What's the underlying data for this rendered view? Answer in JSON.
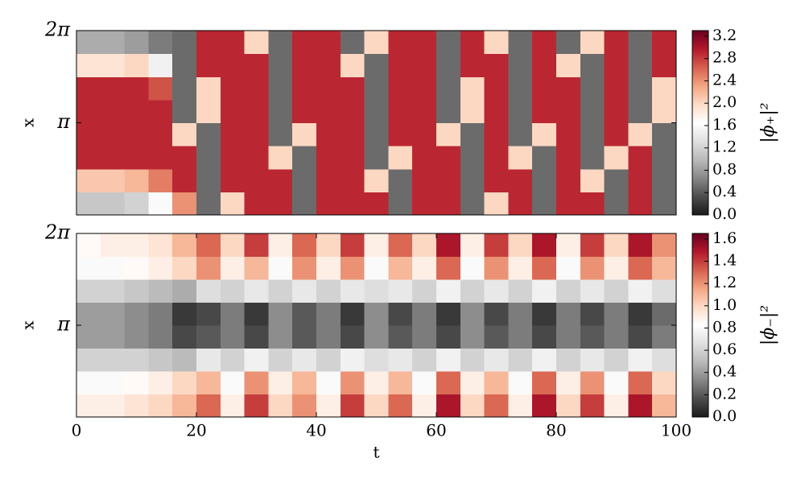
{
  "chart_data": [
    {
      "type": "heatmap",
      "ylabel": "x",
      "zlabel": "|ϕ₊|²",
      "xlim": [
        0,
        100
      ],
      "ylim": [
        0,
        6.2832
      ],
      "yticks": [
        {
          "value": 3.1416,
          "label": "π"
        },
        {
          "value": 6.2832,
          "label": "2π"
        }
      ],
      "xbins": [
        0,
        4,
        8,
        12,
        16,
        20,
        24,
        28,
        32,
        36,
        40,
        44,
        48,
        52,
        56,
        60,
        64,
        68,
        72,
        76,
        80,
        84,
        88,
        92,
        96,
        100
      ],
      "ybins": [
        0,
        0.7854,
        1.5708,
        2.3562,
        3.1416,
        3.927,
        4.7124,
        5.4978,
        6.2832
      ],
      "zlim": [
        0,
        3.3
      ],
      "zticks": [
        {
          "value": 0,
          "label": "0.0"
        },
        0.4,
        0.8,
        1.2,
        1.6,
        {
          "value": 2,
          "label": "2.0"
        },
        2.4,
        2.8,
        3.2
      ],
      "colorscale": [
        "#1a1a1a",
        "#4d4d4d",
        "#878787",
        "#bababa",
        "#e0e0e0",
        "#ffffff",
        "#fddbc7",
        "#f4a582",
        "#d6604d",
        "#b2182b",
        "#67001f"
      ],
      "z": [
        [
          1.1,
          1.1,
          1.2,
          1.6,
          2.4,
          0.5,
          2.0,
          2.9,
          2.9,
          0.5,
          2.9,
          2.9,
          2.9,
          0.5,
          2.9,
          2.9,
          0.5,
          2.0,
          2.9,
          0.5,
          2.9,
          2.9,
          0.5,
          2.9,
          0.5
        ],
        [
          2.1,
          2.1,
          2.2,
          2.5,
          2.9,
          0.5,
          2.9,
          2.9,
          2.9,
          0.5,
          2.9,
          2.9,
          2.0,
          0.5,
          2.9,
          2.9,
          0.5,
          2.9,
          2.9,
          0.5,
          2.9,
          2.0,
          0.5,
          2.9,
          0.5
        ],
        [
          2.9,
          2.9,
          2.9,
          2.9,
          2.9,
          0.5,
          2.9,
          2.9,
          2.0,
          0.5,
          2.9,
          2.9,
          0.5,
          2.0,
          2.9,
          2.9,
          0.5,
          2.9,
          2.0,
          0.5,
          2.9,
          0.5,
          2.0,
          2.9,
          0.5
        ],
        [
          2.9,
          2.9,
          2.9,
          2.9,
          2.0,
          0.5,
          2.9,
          2.9,
          0.5,
          2.0,
          2.9,
          2.9,
          0.5,
          2.9,
          2.9,
          2.0,
          0.5,
          2.9,
          0.5,
          2.0,
          2.9,
          0.5,
          2.9,
          2.0,
          0.5
        ],
        [
          2.9,
          2.9,
          2.9,
          2.9,
          0.5,
          2.0,
          2.9,
          2.9,
          0.5,
          2.9,
          2.9,
          2.9,
          0.5,
          2.9,
          2.9,
          0.5,
          2.0,
          2.9,
          0.5,
          2.9,
          2.9,
          0.5,
          2.9,
          0.5,
          2.0
        ],
        [
          2.9,
          2.9,
          2.9,
          2.7,
          0.5,
          2.0,
          2.9,
          2.9,
          0.5,
          2.9,
          2.9,
          2.9,
          0.5,
          2.9,
          2.9,
          0.5,
          2.0,
          2.9,
          0.5,
          2.9,
          2.9,
          0.5,
          2.9,
          0.5,
          2.0
        ],
        [
          1.9,
          1.9,
          2.0,
          1.5,
          0.5,
          2.9,
          2.9,
          2.9,
          0.5,
          2.9,
          2.9,
          2.0,
          0.5,
          2.9,
          2.9,
          0.5,
          2.9,
          2.9,
          0.5,
          2.9,
          2.0,
          0.5,
          2.9,
          0.5,
          2.9
        ],
        [
          0.9,
          0.9,
          0.8,
          0.6,
          0.5,
          2.9,
          2.9,
          2.0,
          0.5,
          2.9,
          2.9,
          0.5,
          2.0,
          2.9,
          2.9,
          0.5,
          2.9,
          2.0,
          0.5,
          2.9,
          0.5,
          2.0,
          2.9,
          0.5,
          2.9
        ]
      ]
    },
    {
      "type": "heatmap",
      "ylabel": "x",
      "xlabel": "t",
      "zlabel": "|ϕ₋|²",
      "xlim": [
        0,
        100
      ],
      "ylim": [
        0,
        6.2832
      ],
      "xticks": [
        0,
        20,
        40,
        60,
        80,
        100
      ],
      "yticks": [
        {
          "value": 3.1416,
          "label": "π"
        },
        {
          "value": 6.2832,
          "label": "2π"
        }
      ],
      "xbins": [
        0,
        4,
        8,
        12,
        16,
        20,
        24,
        28,
        32,
        36,
        40,
        44,
        48,
        52,
        56,
        60,
        64,
        68,
        72,
        76,
        80,
        84,
        88,
        92,
        96,
        100
      ],
      "ybins": [
        0,
        0.7854,
        1.5708,
        2.3562,
        3.1416,
        3.927,
        4.7124,
        5.4978,
        6.2832
      ],
      "zlim": [
        0,
        1.65
      ],
      "zticks": [
        {
          "value": 0,
          "label": "0.0"
        },
        0.2,
        0.4,
        0.6,
        0.8,
        {
          "value": 1,
          "label": "1.0"
        },
        1.2,
        1.4,
        1.6
      ],
      "colorscale": [
        "#1a1a1a",
        "#4d4d4d",
        "#878787",
        "#bababa",
        "#e0e0e0",
        "#ffffff",
        "#fddbc7",
        "#f4a582",
        "#d6604d",
        "#b2182b",
        "#67001f"
      ],
      "z": [
        [
          0.9,
          0.9,
          0.95,
          1.0,
          1.1,
          1.3,
          0.9,
          1.4,
          1.0,
          1.2,
          0.9,
          1.4,
          1.0,
          1.3,
          0.9,
          1.5,
          1.0,
          1.3,
          0.9,
          1.5,
          1.0,
          1.4,
          0.9,
          1.5,
          1.1
        ],
        [
          0.8,
          0.8,
          0.85,
          0.9,
          1.0,
          1.1,
          0.8,
          1.2,
          0.9,
          1.1,
          0.8,
          1.2,
          0.9,
          1.1,
          0.8,
          1.3,
          0.9,
          1.1,
          0.8,
          1.3,
          0.9,
          1.2,
          0.8,
          1.3,
          1.0
        ],
        [
          0.6,
          0.6,
          0.6,
          0.55,
          0.5,
          0.7,
          0.6,
          0.75,
          0.6,
          0.7,
          0.6,
          0.75,
          0.65,
          0.7,
          0.6,
          0.75,
          0.6,
          0.7,
          0.6,
          0.75,
          0.6,
          0.7,
          0.6,
          0.75,
          0.65
        ],
        [
          0.4,
          0.4,
          0.35,
          0.3,
          0.15,
          0.2,
          0.3,
          0.15,
          0.35,
          0.2,
          0.3,
          0.15,
          0.35,
          0.2,
          0.3,
          0.15,
          0.35,
          0.2,
          0.3,
          0.15,
          0.3,
          0.2,
          0.3,
          0.15,
          0.3
        ],
        [
          0.4,
          0.4,
          0.35,
          0.3,
          0.1,
          0.15,
          0.3,
          0.1,
          0.35,
          0.2,
          0.3,
          0.1,
          0.35,
          0.15,
          0.3,
          0.1,
          0.35,
          0.15,
          0.3,
          0.1,
          0.3,
          0.15,
          0.3,
          0.1,
          0.25
        ],
        [
          0.6,
          0.6,
          0.55,
          0.5,
          0.45,
          0.65,
          0.6,
          0.7,
          0.6,
          0.7,
          0.6,
          0.7,
          0.65,
          0.7,
          0.6,
          0.75,
          0.6,
          0.7,
          0.6,
          0.75,
          0.6,
          0.7,
          0.6,
          0.75,
          0.65
        ],
        [
          0.8,
          0.8,
          0.85,
          0.9,
          1.0,
          1.2,
          0.9,
          1.1,
          0.8,
          1.2,
          0.9,
          1.2,
          0.8,
          1.1,
          0.9,
          1.3,
          0.8,
          1.2,
          0.9,
          1.3,
          0.8,
          1.2,
          0.9,
          1.3,
          1.1
        ],
        [
          0.85,
          0.9,
          0.9,
          0.95,
          1.1,
          1.3,
          1.0,
          1.4,
          0.9,
          1.3,
          1.0,
          1.4,
          0.9,
          1.3,
          1.0,
          1.5,
          0.9,
          1.4,
          1.0,
          1.5,
          0.9,
          1.4,
          1.0,
          1.5,
          1.2
        ]
      ]
    }
  ]
}
